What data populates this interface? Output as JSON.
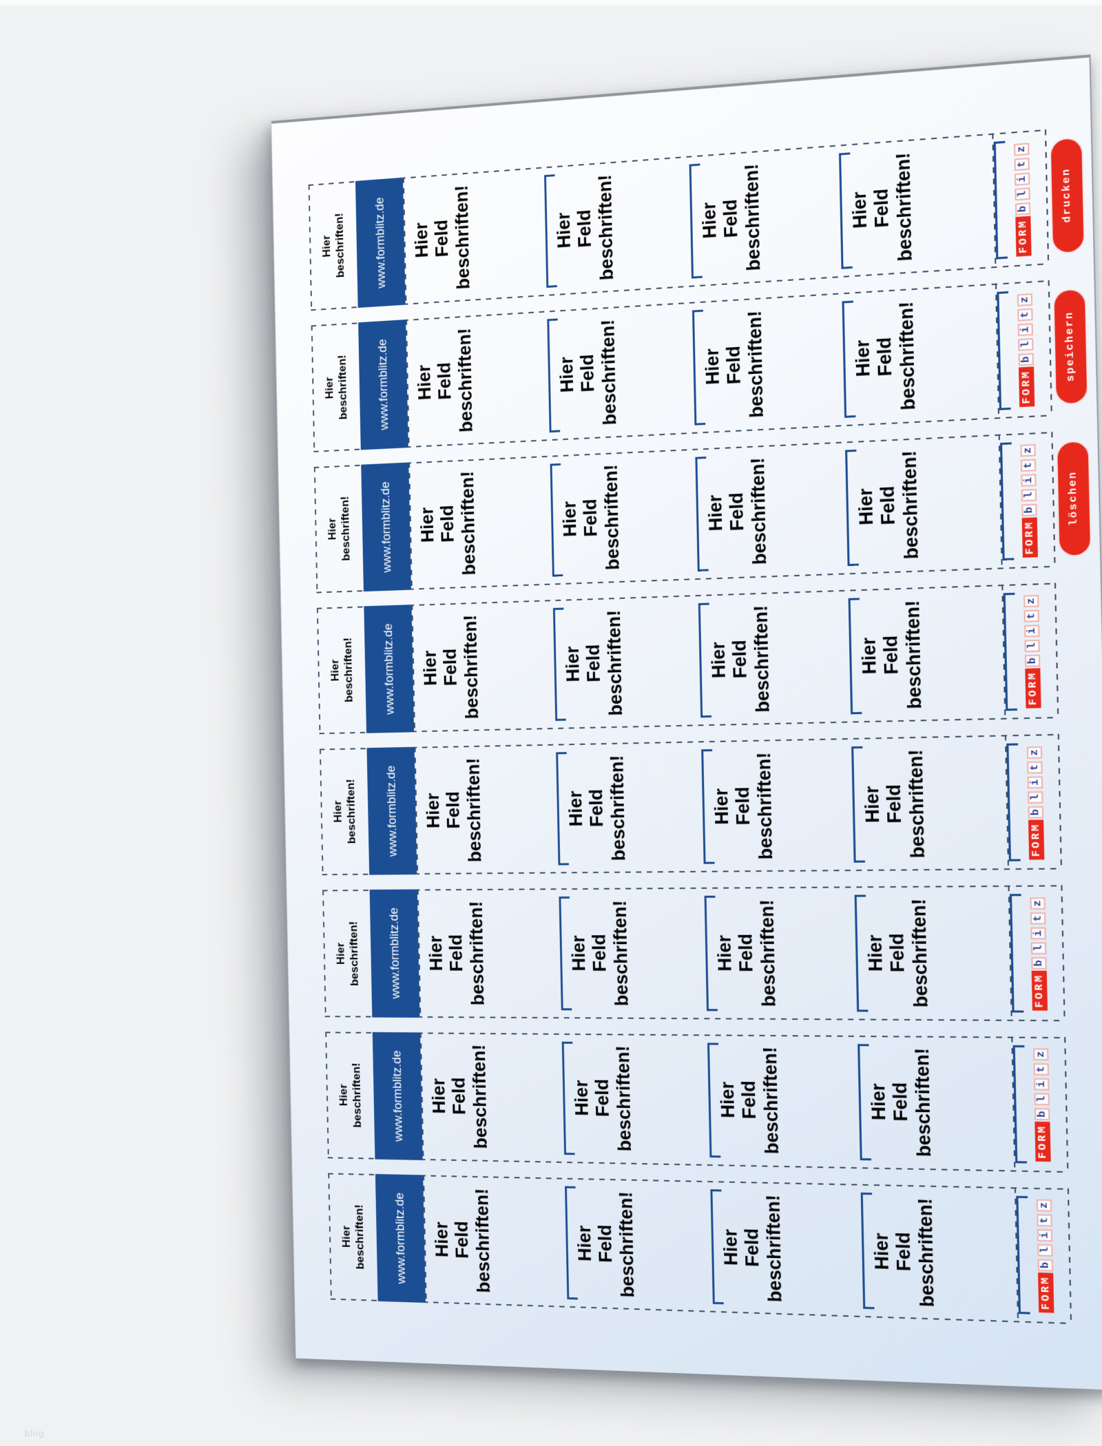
{
  "page": {
    "watermark": "blog"
  },
  "sheet": {
    "row_count": 8,
    "fields_per_row": 4,
    "row": {
      "side_label_lines": [
        "Hier",
        "beschriften!"
      ],
      "url_bar": "www.formblitz.de",
      "field_lines": [
        "Hier",
        "Feld",
        "beschriften!"
      ],
      "logo": {
        "form": "FORM",
        "blitz": "blitz"
      }
    }
  },
  "buttons": [
    {
      "label": "drucken"
    },
    {
      "label": "speichern"
    },
    {
      "label": "löschen"
    }
  ],
  "colors": {
    "bar_navy": "#1c4e94",
    "divider_navy": "#1d4d92",
    "dash_line": "#3c4f66",
    "accent_red": "#e7291d",
    "logo_letter_blue": "#2b3a8f",
    "logo_box_border": "#f0b4ae",
    "sheet_tint": "#d5e3f3",
    "background_gray": "#f0f1f2"
  }
}
